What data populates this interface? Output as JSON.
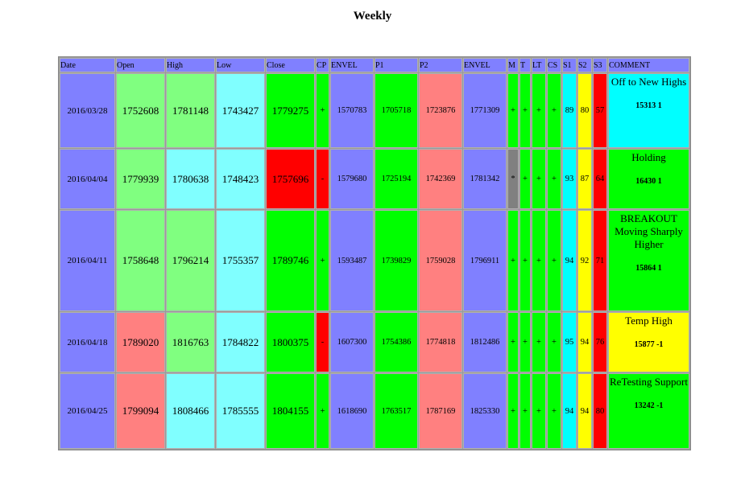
{
  "title": "Weekly",
  "table": {
    "header": [
      "Date",
      "Open",
      "High",
      "Low",
      "Close",
      "CP",
      "ENVEL",
      "P1",
      "P2",
      "ENVEL",
      "M",
      "T",
      "LT",
      "CS",
      "S1",
      "S2",
      "S3",
      "COMMENT"
    ],
    "rows": [
      {
        "cells": [
          "2016/03/28",
          "1752608",
          "1781148",
          "1743427",
          "1779275",
          "+",
          "1570783",
          "1705718",
          "1723876",
          "1771309",
          "+",
          "+",
          "+",
          "+",
          "89",
          "80",
          "57"
        ],
        "colors": [
          "#8080ff",
          "#80ff80",
          "#80ff80",
          "#80ffff",
          "#00ff00",
          "#00ff00",
          "#8080ff",
          "#00ff00",
          "#ff8080",
          "#8080ff",
          "#00ff00",
          "#00ff00",
          "#00ff00",
          "#00ff00",
          "#00ffff",
          "#ffff00",
          "#ff0000"
        ],
        "comment": {
          "text": "Off to New Highs",
          "code": "15313 1",
          "color": "#00ffff"
        }
      },
      {
        "cells": [
          "2016/04/04",
          "1779939",
          "1780638",
          "1748423",
          "1757696",
          "-",
          "1579680",
          "1725194",
          "1742369",
          "1781342",
          "*",
          "+",
          "+",
          "+",
          "93",
          "87",
          "64"
        ],
        "colors": [
          "#8080ff",
          "#80ff80",
          "#80ffff",
          "#80ffff",
          "#ff0000",
          "#ff0000",
          "#8080ff",
          "#00ff00",
          "#ff8080",
          "#8080ff",
          "#808080",
          "#00ff00",
          "#00ff00",
          "#00ff00",
          "#00ffff",
          "#ffff00",
          "#ff0000"
        ],
        "comment": {
          "text": "Holding",
          "code": "16430 1",
          "color": "#00ff00"
        }
      },
      {
        "cells": [
          "2016/04/11",
          "1758648",
          "1796214",
          "1755357",
          "1789746",
          "+",
          "1593487",
          "1739829",
          "1759028",
          "1796911",
          "+",
          "+",
          "+",
          "+",
          "94",
          "92",
          "71"
        ],
        "colors": [
          "#8080ff",
          "#80ff80",
          "#80ff80",
          "#80ffff",
          "#00ff00",
          "#00ff00",
          "#8080ff",
          "#00ff00",
          "#ff8080",
          "#8080ff",
          "#00ff00",
          "#00ff00",
          "#00ff00",
          "#00ff00",
          "#00ffff",
          "#ffff00",
          "#ff0000"
        ],
        "comment": {
          "text": "BREAKOUT Moving Sharply Higher",
          "code": "15864 1",
          "color": "#00ff00"
        }
      },
      {
        "cells": [
          "2016/04/18",
          "1789020",
          "1816763",
          "1784822",
          "1800375",
          "-",
          "1607300",
          "1754386",
          "1774818",
          "1812486",
          "+",
          "+",
          "+",
          "+",
          "95",
          "94",
          "76"
        ],
        "colors": [
          "#8080ff",
          "#ff8080",
          "#80ff80",
          "#80ffff",
          "#00ff00",
          "#ff0000",
          "#8080ff",
          "#00ff00",
          "#ff8080",
          "#8080ff",
          "#00ff00",
          "#00ff00",
          "#00ff00",
          "#00ff00",
          "#00ffff",
          "#ffff00",
          "#ff0000"
        ],
        "comment": {
          "text": "Temp High",
          "code": "15877 -1",
          "color": "#ffff00"
        }
      },
      {
        "cells": [
          "2016/04/25",
          "1799094",
          "1808466",
          "1785555",
          "1804155",
          "+",
          "1618690",
          "1763517",
          "1787169",
          "1825330",
          "+",
          "+",
          "+",
          "+",
          "94",
          "94",
          "80"
        ],
        "colors": [
          "#8080ff",
          "#ff8080",
          "#80ffff",
          "#80ffff",
          "#00ff00",
          "#00ff00",
          "#8080ff",
          "#00ff00",
          "#ff8080",
          "#8080ff",
          "#00ff00",
          "#00ff00",
          "#00ff00",
          "#00ff00",
          "#00ffff",
          "#ffff00",
          "#ff0000"
        ],
        "comment": {
          "text": "ReTesting Support",
          "code": "13242 -1",
          "color": "#00ff00"
        }
      }
    ]
  }
}
